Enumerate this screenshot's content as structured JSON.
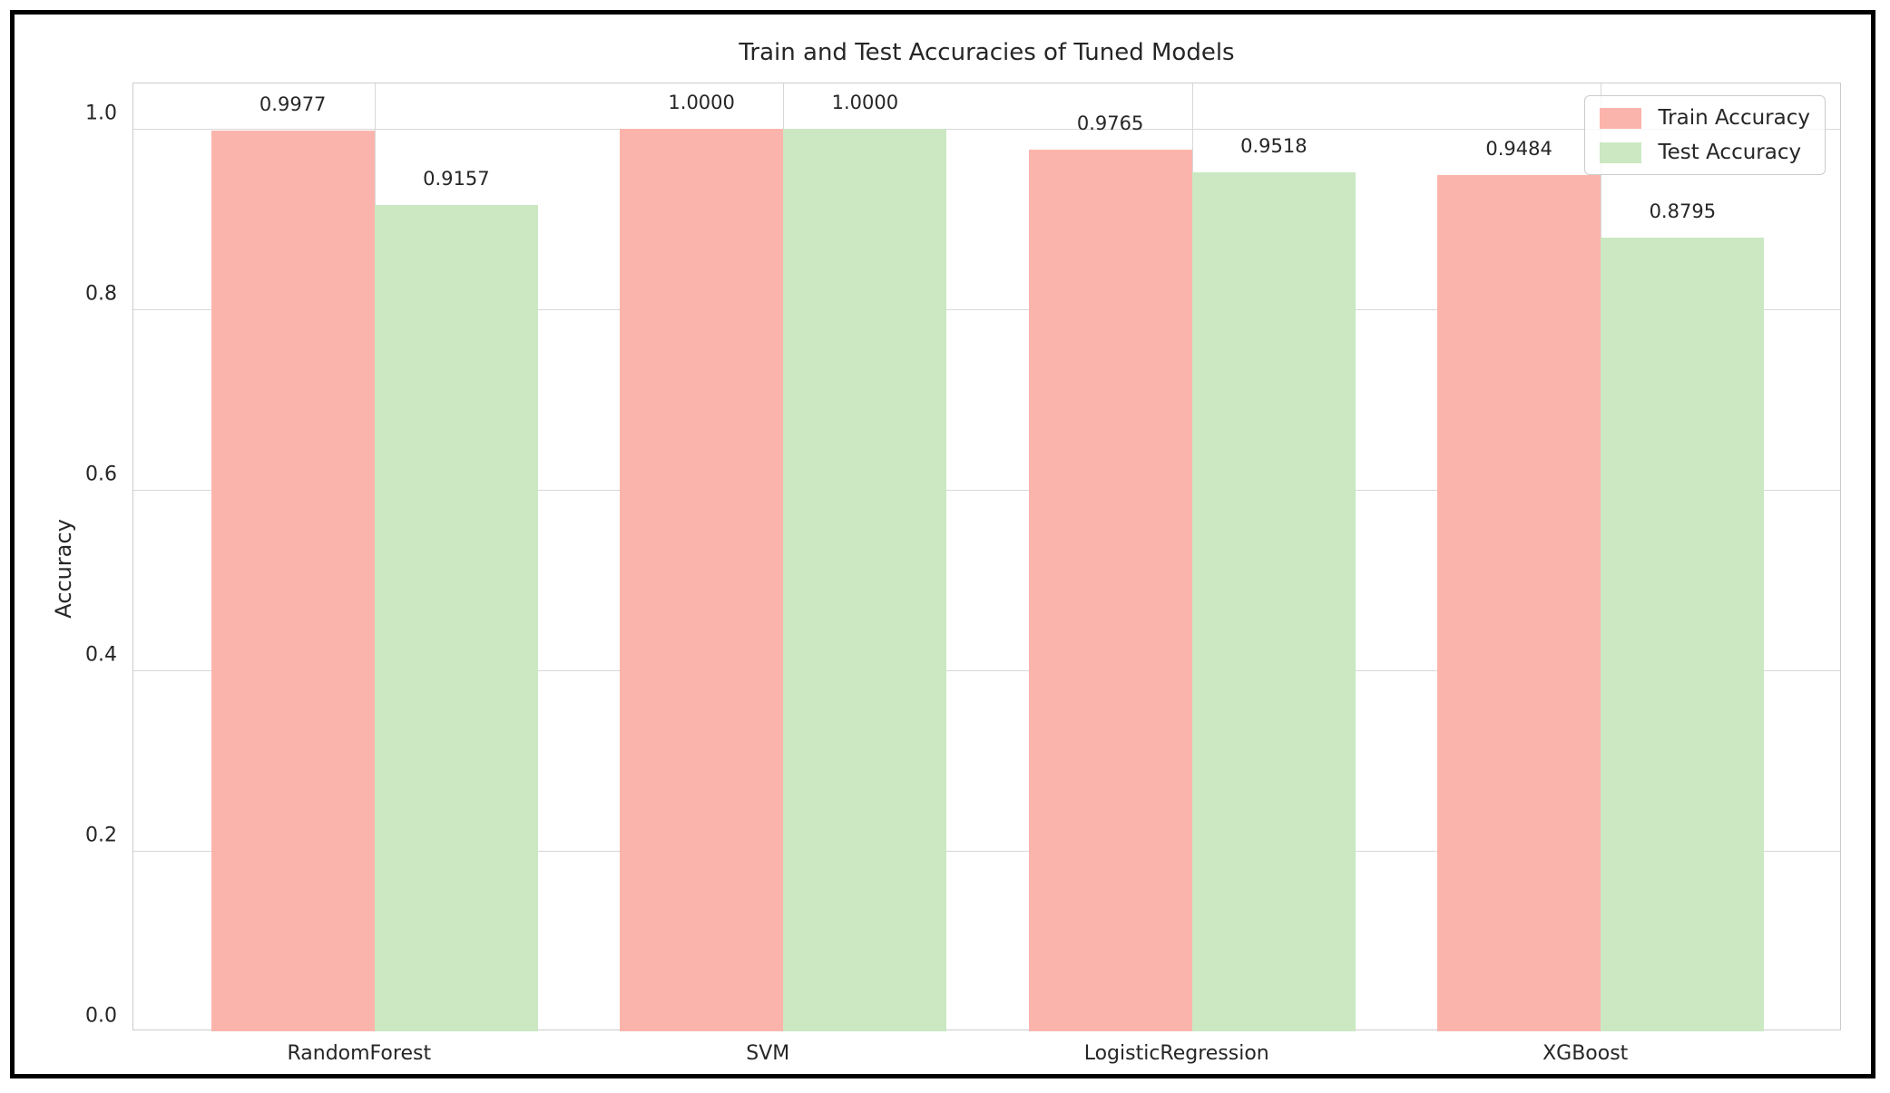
{
  "chart_data": {
    "type": "bar",
    "title": "Train and Test Accuracies of Tuned Models",
    "xlabel": "",
    "ylabel": "Accuracy",
    "categories": [
      "RandomForest",
      "SVM",
      "LogisticRegression",
      "XGBoost"
    ],
    "series": [
      {
        "name": "Train Accuracy",
        "color": "#fbb4ab",
        "values": [
          0.9977,
          1.0,
          0.9765,
          0.9484
        ],
        "value_labels": [
          "0.9977",
          "1.0000",
          "0.9765",
          "0.9484"
        ]
      },
      {
        "name": "Test Accuracy",
        "color": "#cbe8c2",
        "values": [
          0.9157,
          1.0,
          0.9518,
          0.8795
        ],
        "value_labels": [
          "0.9157",
          "1.0000",
          "0.9518",
          "0.8795"
        ]
      }
    ],
    "ylim": [
      0,
      1.05
    ],
    "yticks": [
      0.0,
      0.2,
      0.4,
      0.6,
      0.8,
      1.0
    ],
    "ytick_labels": [
      "0.0",
      "0.2",
      "0.4",
      "0.6",
      "0.8",
      "1.0"
    ],
    "grid": true,
    "legend_position": "upper right",
    "colors": {
      "grid": "#d8d8d8",
      "spine": "#cccccc",
      "text": "#262626",
      "background": "#ffffff",
      "frame_border": "#000000"
    }
  }
}
